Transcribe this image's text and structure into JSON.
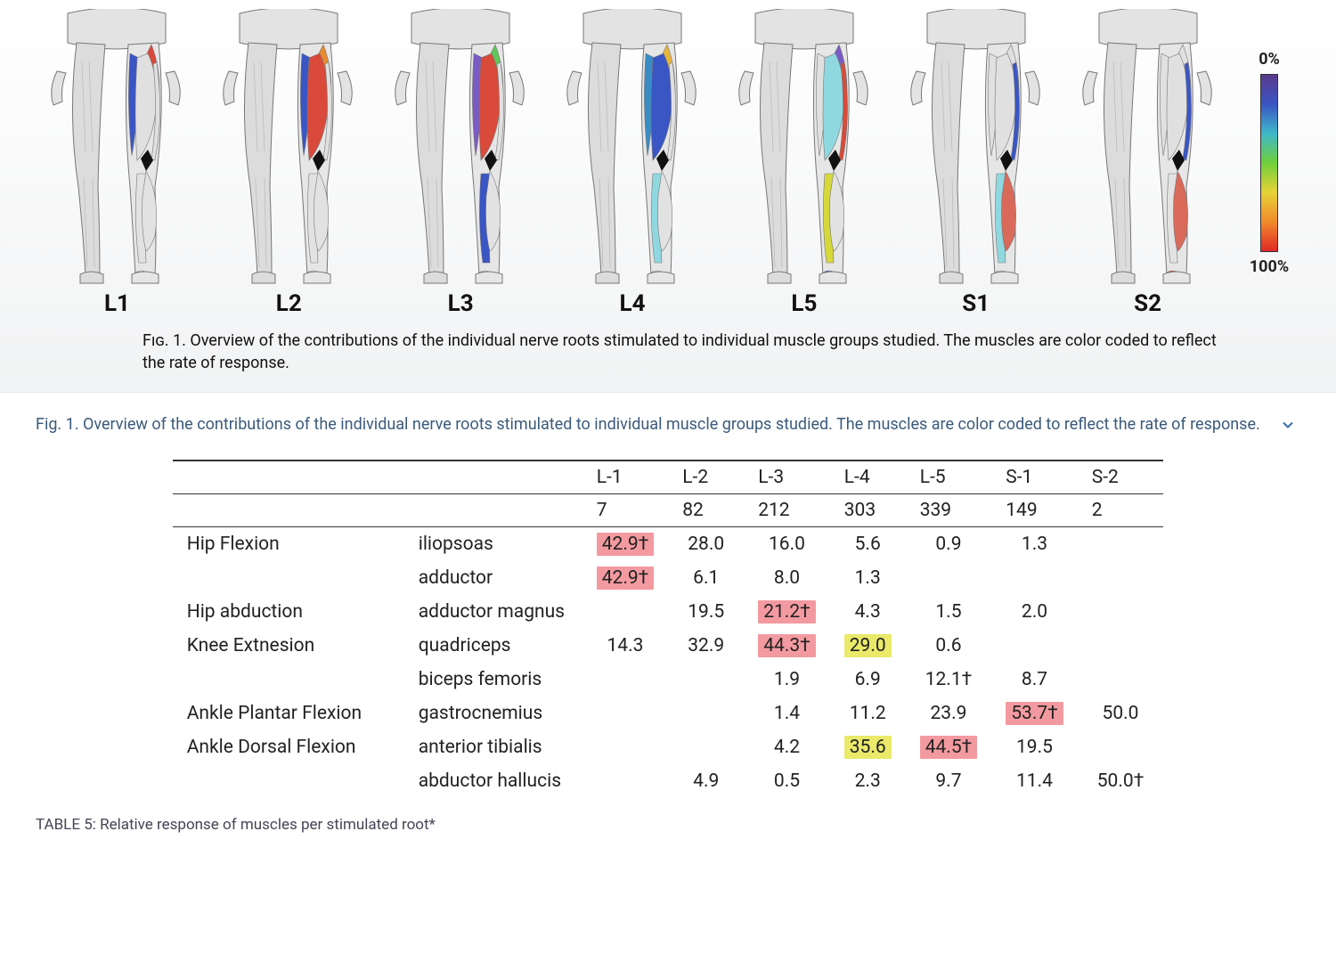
{
  "figure": {
    "roots": [
      "L1",
      "L2",
      "L3",
      "L4",
      "L5",
      "S1",
      "S2"
    ],
    "caption_label": "Fig. 1.",
    "caption_text": "Overview of the contributions of the individual nerve roots stimulated to individual muscle groups studied. The muscles are color coded to reflect the rate of response.",
    "colorbar": {
      "top_label": "0%",
      "bottom_label": "100%",
      "gradient_stops": [
        "#5a3a8c",
        "#3a55c4",
        "#3fb8c9",
        "#6fcf3a",
        "#e6d337",
        "#f08a2a",
        "#e02828"
      ]
    },
    "anatomy_highlights": {
      "L1": [
        {
          "region": "hip_flexor",
          "color": "#d94a3a"
        },
        {
          "region": "adductor",
          "color": "#3a55c4"
        }
      ],
      "L2": [
        {
          "region": "hip_flexor",
          "color": "#e88a2f"
        },
        {
          "region": "quadriceps",
          "color": "#d94a3a"
        },
        {
          "region": "adductor",
          "color": "#3a55c4"
        }
      ],
      "L3": [
        {
          "region": "hip_flexor",
          "color": "#5fc75a"
        },
        {
          "region": "quadriceps",
          "color": "#d94a3a"
        },
        {
          "region": "adductor",
          "color": "#7a5bc4"
        },
        {
          "region": "ant_tibialis",
          "color": "#3a55c4"
        }
      ],
      "L4": [
        {
          "region": "hip_flexor",
          "color": "#e8b53a"
        },
        {
          "region": "quadriceps",
          "color": "#3a55c4"
        },
        {
          "region": "ant_tibialis",
          "color": "#8fd8e0"
        },
        {
          "region": "adductor",
          "color": "#3a8cc4"
        }
      ],
      "L5": [
        {
          "region": "hip_flexor",
          "color": "#7a5bc4"
        },
        {
          "region": "quadriceps",
          "color": "#8fd8e0"
        },
        {
          "region": "ant_tibialis",
          "color": "#d6d83a"
        },
        {
          "region": "biceps_femoris",
          "color": "#d94a3a"
        },
        {
          "region": "abductor_hallucis",
          "color": "#3a55c4"
        }
      ],
      "S1": [
        {
          "region": "gastrocnemius",
          "color": "#d96a5a"
        },
        {
          "region": "biceps_femoris",
          "color": "#3a55c4"
        },
        {
          "region": "ant_tibialis",
          "color": "#8fd8e0"
        }
      ],
      "S2": [
        {
          "region": "gastrocnemius",
          "color": "#d96a5a"
        },
        {
          "region": "biceps_femoris",
          "color": "#3a55c4"
        },
        {
          "region": "abductor_hallucis",
          "color": "#d94a3a"
        }
      ]
    }
  },
  "link_caption": "Fig. 1. Overview of the contributions of the individual nerve roots stimulated to individual muscle groups studied. The muscles are color coded to reflect the rate of response.",
  "table": {
    "caption": "TABLE 5: Relative response of muscles per stimulated root*",
    "columns": [
      "L-1",
      "L-2",
      "L-3",
      "L-4",
      "L-5",
      "S-1",
      "S-2"
    ],
    "counts": [
      "7",
      "82",
      "212",
      "303",
      "339",
      "149",
      "2"
    ],
    "rows": [
      {
        "movement": "Hip Flexion",
        "muscle": "iliopsoas",
        "cells": [
          {
            "v": "42.9†",
            "hl": "pink"
          },
          {
            "v": "28.0"
          },
          {
            "v": "16.0"
          },
          {
            "v": "5.6"
          },
          {
            "v": "0.9"
          },
          {
            "v": "1.3"
          },
          {
            "v": ""
          }
        ]
      },
      {
        "movement": "",
        "muscle": "adductor",
        "cells": [
          {
            "v": "42.9†",
            "hl": "pink"
          },
          {
            "v": "6.1"
          },
          {
            "v": "8.0"
          },
          {
            "v": "1.3"
          },
          {
            "v": ""
          },
          {
            "v": ""
          },
          {
            "v": ""
          }
        ]
      },
      {
        "movement": "Hip abduction",
        "muscle": "adductor magnus",
        "cells": [
          {
            "v": ""
          },
          {
            "v": "19.5"
          },
          {
            "v": "21.2†",
            "hl": "pink"
          },
          {
            "v": "4.3"
          },
          {
            "v": "1.5"
          },
          {
            "v": "2.0"
          },
          {
            "v": ""
          }
        ]
      },
      {
        "movement": "Knee Extnesion",
        "muscle": "quadriceps",
        "cells": [
          {
            "v": "14.3"
          },
          {
            "v": "32.9"
          },
          {
            "v": "44.3†",
            "hl": "pink"
          },
          {
            "v": "29.0",
            "hl": "yellow"
          },
          {
            "v": "0.6"
          },
          {
            "v": ""
          },
          {
            "v": ""
          }
        ]
      },
      {
        "movement": "",
        "muscle": "biceps femoris",
        "cells": [
          {
            "v": ""
          },
          {
            "v": ""
          },
          {
            "v": "1.9"
          },
          {
            "v": "6.9"
          },
          {
            "v": "12.1†"
          },
          {
            "v": "8.7"
          },
          {
            "v": ""
          }
        ]
      },
      {
        "movement": "Ankle Plantar Flexion",
        "muscle": "gastrocnemius",
        "cells": [
          {
            "v": ""
          },
          {
            "v": ""
          },
          {
            "v": "1.4"
          },
          {
            "v": "11.2"
          },
          {
            "v": "23.9"
          },
          {
            "v": "53.7†",
            "hl": "pink"
          },
          {
            "v": "50.0"
          }
        ]
      },
      {
        "movement": "Ankle Dorsal Flexion",
        "muscle": "anterior tibialis",
        "cells": [
          {
            "v": ""
          },
          {
            "v": ""
          },
          {
            "v": "4.2"
          },
          {
            "v": "35.6",
            "hl": "yellow"
          },
          {
            "v": "44.5†",
            "hl": "pink"
          },
          {
            "v": "19.5"
          },
          {
            "v": ""
          }
        ]
      },
      {
        "movement": "",
        "muscle": "abductor hallucis",
        "cells": [
          {
            "v": ""
          },
          {
            "v": "4.9"
          },
          {
            "v": "0.5"
          },
          {
            "v": "2.3"
          },
          {
            "v": "9.7"
          },
          {
            "v": "11.4"
          },
          {
            "v": "50.0†"
          }
        ]
      }
    ],
    "highlight_colors": {
      "pink": "#f39aa0",
      "yellow": "#eae96a"
    },
    "font_size_pt": 16
  }
}
